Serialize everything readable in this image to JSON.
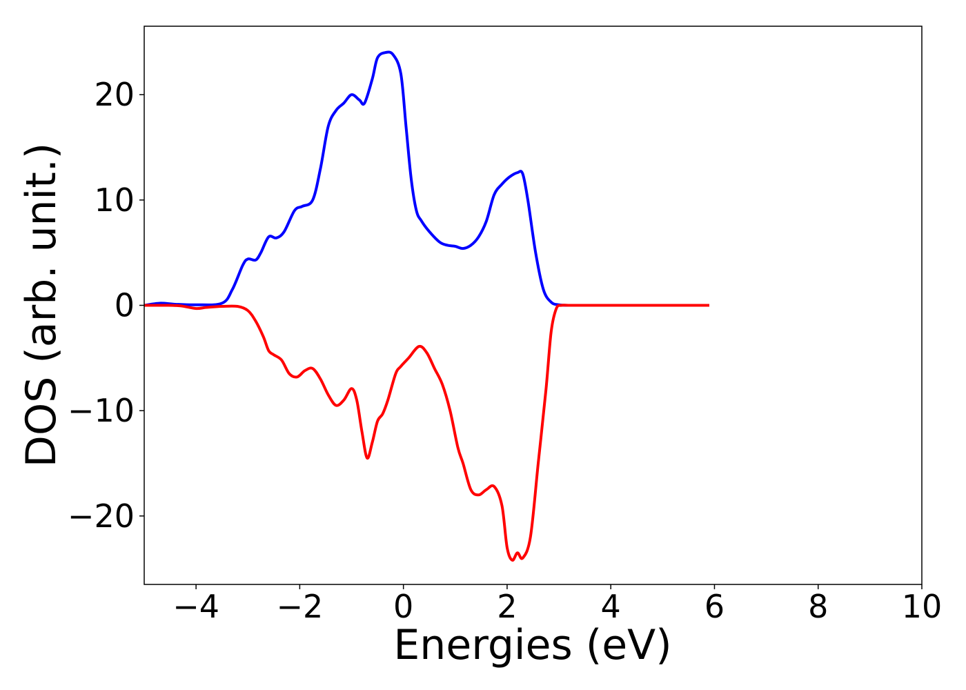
{
  "chart_data": {
    "type": "line",
    "title": "",
    "xlabel": "Energies (eV)",
    "ylabel": "DOS (arb. unit.)",
    "xlim": [
      -5,
      10
    ],
    "ylim": [
      -26.5,
      26.5
    ],
    "xticks": [
      -4,
      -2,
      0,
      2,
      4,
      6,
      8,
      10
    ],
    "xtick_labels": [
      "−4",
      "−2",
      "0",
      "2",
      "4",
      "6",
      "8",
      "10"
    ],
    "yticks": [
      -20,
      -10,
      0,
      10,
      20
    ],
    "ytick_labels": [
      "−20",
      "−10",
      "0",
      "10",
      "20"
    ],
    "grid": false,
    "legend": "none",
    "series": [
      {
        "color": "#0000ff",
        "x": [
          -5,
          -4.7,
          -4.4,
          -4,
          -3.5,
          -3.3,
          -3.1,
          -3.0,
          -2.85,
          -2.75,
          -2.6,
          -2.45,
          -2.3,
          -2.1,
          -1.95,
          -1.75,
          -1.6,
          -1.45,
          -1.3,
          -1.15,
          -1.0,
          -0.85,
          -0.75,
          -0.6,
          -0.5,
          -0.35,
          -0.2,
          -0.05,
          0.05,
          0.15,
          0.25,
          0.35,
          0.5,
          0.7,
          0.85,
          1.0,
          1.15,
          1.3,
          1.45,
          1.6,
          1.75,
          1.9,
          2.05,
          2.2,
          2.3,
          2.4,
          2.55,
          2.7,
          2.85,
          3.0,
          3.2,
          3.5,
          4,
          5,
          5.9
        ],
        "y": [
          0,
          0.2,
          0.1,
          0.05,
          0.2,
          1.5,
          3.8,
          4.4,
          4.3,
          5,
          6.5,
          6.4,
          7,
          9,
          9.4,
          10,
          13,
          17,
          18.5,
          19.2,
          20,
          19.5,
          19.2,
          21.5,
          23.5,
          24,
          23.8,
          22,
          17,
          12,
          9,
          8,
          7,
          6,
          5.7,
          5.6,
          5.4,
          5.7,
          6.5,
          8,
          10.5,
          11.5,
          12.2,
          12.6,
          12.5,
          10,
          5,
          1.5,
          0.3,
          0.05,
          0,
          0,
          0,
          0,
          0
        ]
      },
      {
        "color": "#ff0000",
        "x": [
          -5,
          -4.6,
          -4.3,
          -4.0,
          -3.8,
          -3.5,
          -3.2,
          -3.0,
          -2.85,
          -2.7,
          -2.6,
          -2.5,
          -2.35,
          -2.2,
          -2.05,
          -1.9,
          -1.75,
          -1.6,
          -1.45,
          -1.3,
          -1.15,
          -1.0,
          -0.9,
          -0.8,
          -0.7,
          -0.6,
          -0.5,
          -0.4,
          -0.3,
          -0.15,
          -0.05,
          0.1,
          0.3,
          0.45,
          0.6,
          0.75,
          0.9,
          1.05,
          1.15,
          1.3,
          1.45,
          1.6,
          1.75,
          1.9,
          2.0,
          2.1,
          2.2,
          2.3,
          2.45,
          2.6,
          2.75,
          2.85,
          2.95,
          3.05,
          3.2,
          3.35,
          3.5,
          3.7,
          4.0,
          5,
          5.9
        ],
        "y": [
          0,
          0,
          -0.05,
          -0.3,
          -0.2,
          -0.1,
          -0.1,
          -0.5,
          -1.5,
          -3,
          -4.3,
          -4.7,
          -5.2,
          -6.5,
          -6.8,
          -6.2,
          -6,
          -7,
          -8.5,
          -9.5,
          -9,
          -7.9,
          -9,
          -12,
          -14.5,
          -13,
          -11,
          -10.3,
          -9,
          -6.5,
          -5.8,
          -5,
          -3.9,
          -4.5,
          -6,
          -7.5,
          -10,
          -13.5,
          -15,
          -17.5,
          -18,
          -17.5,
          -17.2,
          -19,
          -23,
          -24.2,
          -23.5,
          -24,
          -22,
          -15,
          -8,
          -2.5,
          -0.3,
          0,
          0,
          0,
          0,
          0,
          0,
          0,
          0
        ]
      }
    ]
  }
}
